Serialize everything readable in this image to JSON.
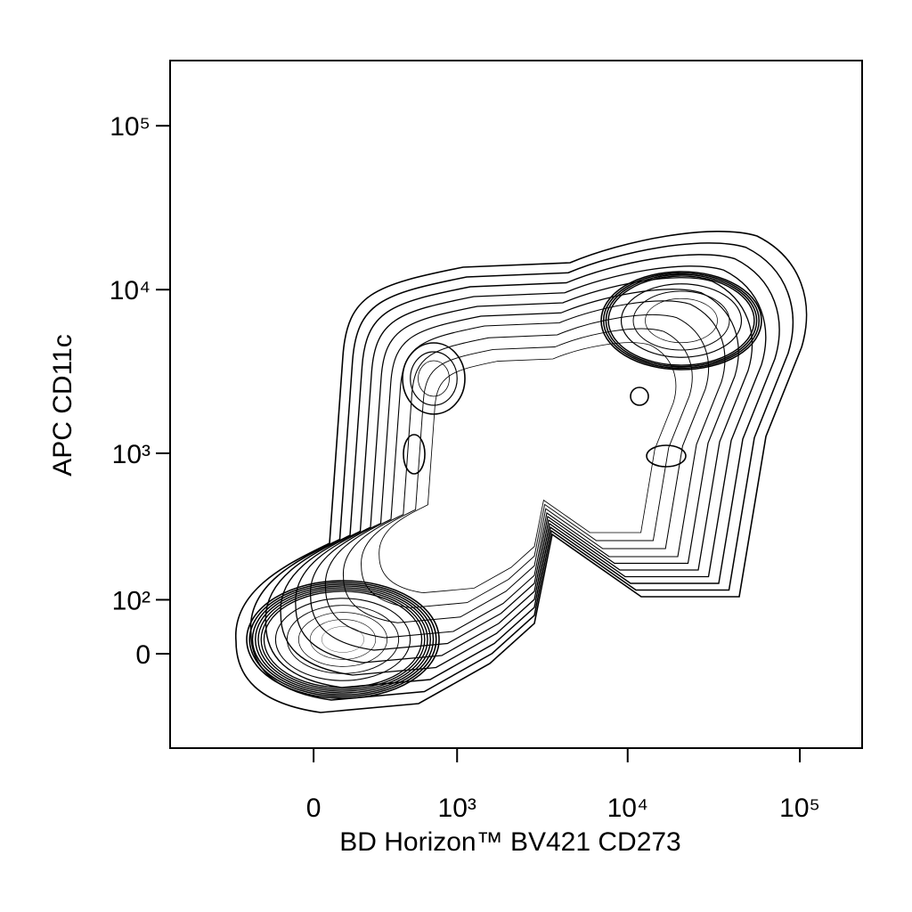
{
  "chart_data": {
    "type": "contour",
    "x_label": "BD Horizon™ BV421 CD273",
    "y_label": "APC CD11c",
    "xlim": [
      -1000,
      230000
    ],
    "ylim": [
      -210,
      250000
    ],
    "xticks": [
      0,
      {
        "value": 1000,
        "label": "10³"
      },
      {
        "value": 10000,
        "label": "10⁴"
      },
      {
        "value": 100000,
        "label": "10⁵"
      }
    ],
    "yticks": [
      0,
      {
        "value": 100,
        "label": "10²"
      },
      {
        "value": 1000,
        "label": "10³"
      },
      {
        "value": 10000,
        "label": "10⁴"
      },
      {
        "value": 100000,
        "label": "10⁵"
      }
    ],
    "x_scale": "biexponential",
    "y_scale": "biexponential",
    "color": "#000000"
  }
}
